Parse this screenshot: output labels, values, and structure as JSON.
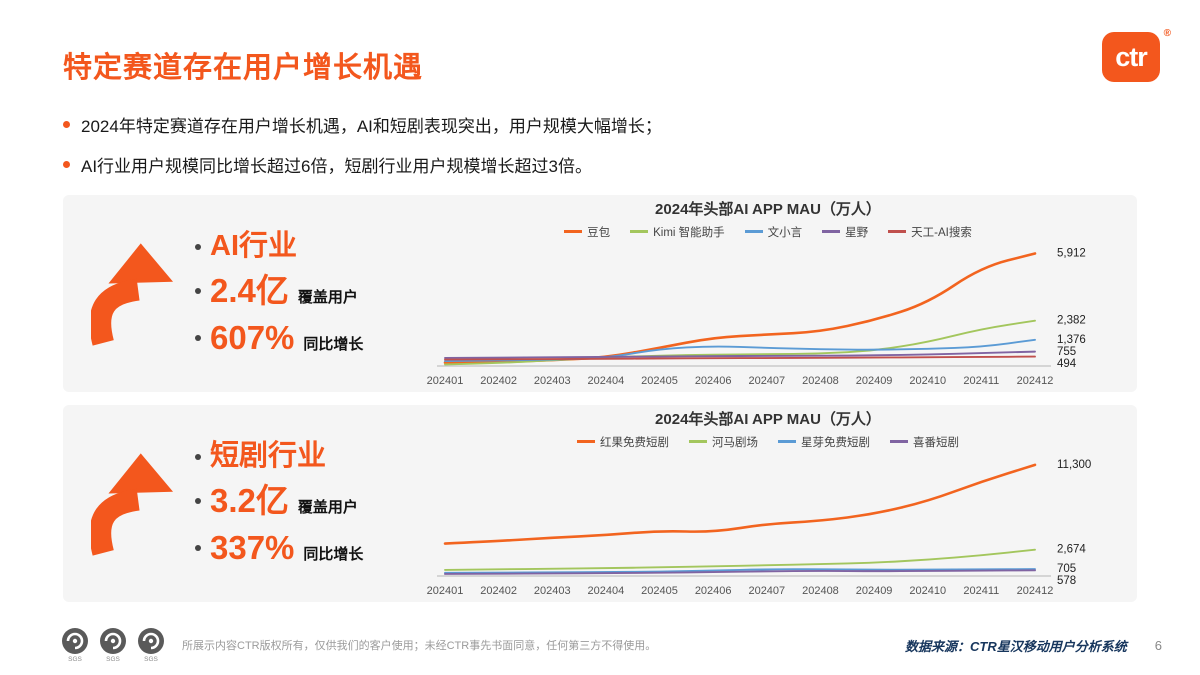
{
  "header": {
    "title": "特定赛道存在用户增长机遇",
    "logo_text": "ctr",
    "logo_reg": "®"
  },
  "bullets": [
    "2024年特定赛道存在用户增长机遇，AI和短剧表现突出，用户规模大幅增长；",
    "AI行业用户规模同比增长超过6倍，短剧行业用户规模增长超过3倍。"
  ],
  "panels": [
    {
      "label": "AI行业",
      "stat1_value": "2.4亿",
      "stat1_suffix": "覆盖用户",
      "stat2_value": "607%",
      "stat2_suffix": "同比增长"
    },
    {
      "label": "短剧行业",
      "stat1_value": "3.2亿",
      "stat1_suffix": "覆盖用户",
      "stat2_value": "337%",
      "stat2_suffix": "同比增长"
    }
  ],
  "chart_data": [
    {
      "type": "line",
      "title": "2024年头部AI APP MAU（万人）",
      "categories": [
        "202401",
        "202402",
        "202403",
        "202404",
        "202405",
        "202406",
        "202407",
        "202408",
        "202409",
        "202410",
        "202411",
        "202412"
      ],
      "ylim": [
        0,
        6200
      ],
      "grid": false,
      "legend_position": "top",
      "series": [
        {
          "name": "豆包",
          "color": "#f2641f",
          "end_label": "5,912",
          "values": [
            180,
            220,
            300,
            450,
            950,
            1500,
            1650,
            1800,
            2400,
            3300,
            5200,
            5912
          ]
        },
        {
          "name": "Kimi 智能助手",
          "color": "#a3c65d",
          "end_label": "2,382",
          "values": [
            80,
            150,
            300,
            450,
            550,
            600,
            620,
            650,
            800,
            1250,
            1950,
            2382
          ]
        },
        {
          "name": "文小言",
          "color": "#5b9bd5",
          "end_label": "1,376",
          "values": [
            260,
            290,
            330,
            420,
            900,
            1050,
            950,
            880,
            850,
            900,
            1000,
            1376
          ]
        },
        {
          "name": "星野",
          "color": "#8064a2",
          "end_label": "755",
          "values": [
            420,
            440,
            460,
            480,
            500,
            520,
            530,
            540,
            560,
            600,
            680,
            755
          ]
        },
        {
          "name": "天工-AI搜索",
          "color": "#c0504d",
          "end_label": "494",
          "values": [
            340,
            350,
            365,
            380,
            395,
            410,
            420,
            430,
            445,
            460,
            475,
            494
          ]
        }
      ]
    },
    {
      "type": "line",
      "title": "2024年头部AI APP MAU（万人）",
      "categories": [
        "202401",
        "202402",
        "202403",
        "202404",
        "202405",
        "202406",
        "202407",
        "202408",
        "202409",
        "202410",
        "202411",
        "202412"
      ],
      "ylim": [
        0,
        12000
      ],
      "grid": false,
      "legend_position": "top",
      "series": [
        {
          "name": "红果免费短剧",
          "color": "#f2641f",
          "end_label": "11,300",
          "values": [
            3300,
            3550,
            3900,
            4150,
            4600,
            4450,
            5300,
            5600,
            6300,
            7600,
            9600,
            11300
          ]
        },
        {
          "name": "河马剧场",
          "color": "#a3c65d",
          "end_label": "2,674",
          "values": [
            620,
            680,
            740,
            800,
            880,
            980,
            1100,
            1200,
            1350,
            1650,
            2100,
            2674
          ]
        },
        {
          "name": "星芽免费短剧",
          "color": "#5b9bd5",
          "end_label": "705",
          "values": [
            320,
            340,
            370,
            400,
            450,
            560,
            680,
            700,
            640,
            650,
            680,
            705
          ]
        },
        {
          "name": "喜番短剧",
          "color": "#8064a2",
          "end_label": "578",
          "values": [
            210,
            230,
            260,
            290,
            330,
            400,
            480,
            520,
            490,
            510,
            550,
            578
          ]
        }
      ]
    }
  ],
  "footer": {
    "badge_label": "SGS",
    "disclaimer": "所展示内容CTR版权所有，仅供我们的客户使用；未经CTR事先书面同意，任何第三方不得使用。",
    "source": "数据来源：CTR星汉移动用户分析系统",
    "page": "6"
  },
  "colors": {
    "accent_orange": "#f3571d",
    "panel_gray": "#f5f5f5",
    "source_navy": "#17365d"
  },
  "icons": {
    "logo": "ctr-logo",
    "growth_arrow": "curved-up-arrow-icon",
    "badge": "sgs-certification-badge-icon"
  }
}
